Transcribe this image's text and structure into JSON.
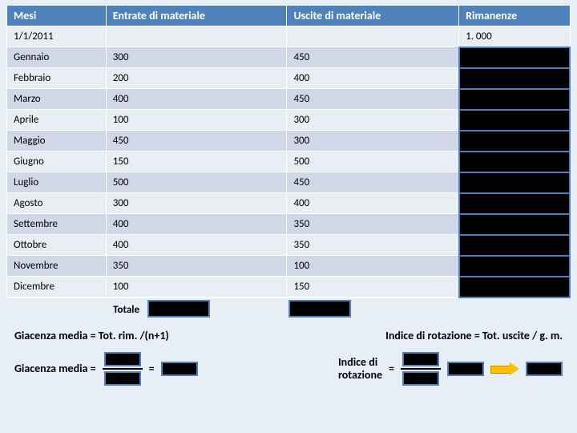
{
  "table": {
    "headers": [
      "Mesi",
      "Entrate di materiale",
      "Uscite di materiale",
      "Rimanenze"
    ],
    "first_row": {
      "label": "1/1/2011",
      "rimanenze": "1. 000"
    },
    "rows": [
      {
        "mese": "Gennaio",
        "entrate": "300",
        "uscite": "450"
      },
      {
        "mese": "Febbraio",
        "entrate": "200",
        "uscite": "400"
      },
      {
        "mese": "Marzo",
        "entrate": "400",
        "uscite": "450"
      },
      {
        "mese": "Aprile",
        "entrate": "100",
        "uscite": "300"
      },
      {
        "mese": "Maggio",
        "entrate": "450",
        "uscite": "300"
      },
      {
        "mese": "Giugno",
        "entrate": "150",
        "uscite": "500"
      },
      {
        "mese": "Luglio",
        "entrate": "500",
        "uscite": "450"
      },
      {
        "mese": "Agosto",
        "entrate": "300",
        "uscite": "400"
      },
      {
        "mese": "Settembre",
        "entrate": "400",
        "uscite": "350"
      },
      {
        "mese": "Ottobre",
        "entrate": "400",
        "uscite": "350"
      },
      {
        "mese": "Novembre",
        "entrate": "350",
        "uscite": "100"
      },
      {
        "mese": "Dicembre",
        "entrate": "100",
        "uscite": "150"
      }
    ],
    "totale_label": "Totale"
  },
  "formulas": {
    "gm_text": "Giacenza media = Tot. rim. /(n+1)",
    "ir_text": "Indice di rotazione = Tot. uscite / g. m.",
    "gm_label": "Giacenza media =",
    "ir_label": "Indice di\nrotazione",
    "eq": "="
  },
  "colors": {
    "header_bg": "#4f81bd",
    "odd_bg": "#e9edf4",
    "even_bg": "#d0d8e8",
    "box_border": "#4f81bd",
    "arrow_fill": "#ffc000"
  }
}
